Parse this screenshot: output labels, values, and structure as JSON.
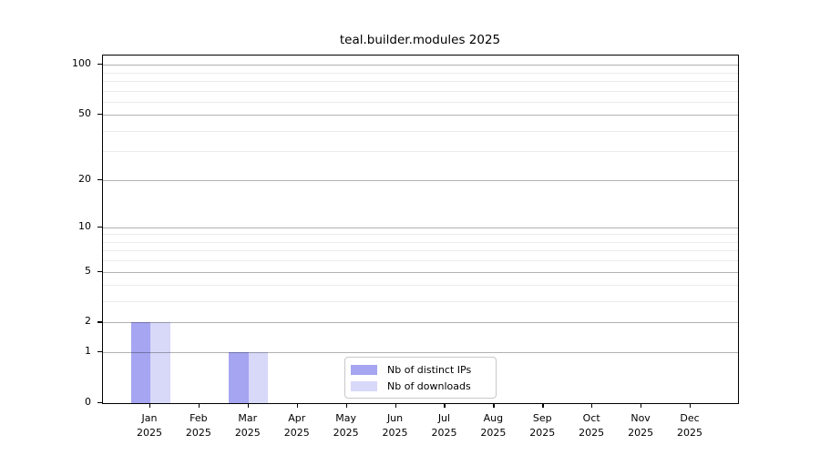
{
  "chart_data": {
    "type": "bar",
    "title": "teal.builder.modules 2025",
    "categories": [
      "Jan",
      "Feb",
      "Mar",
      "Apr",
      "May",
      "Jun",
      "Jul",
      "Aug",
      "Sep",
      "Oct",
      "Nov",
      "Dec"
    ],
    "x_year_label": "2025",
    "series": [
      {
        "name": "Nb of distinct IPs",
        "color": "#a5a5f2",
        "values": [
          2,
          0,
          1,
          0,
          0,
          0,
          0,
          0,
          0,
          0,
          0,
          0
        ]
      },
      {
        "name": "Nb of downloads",
        "color": "#d8d8f9",
        "values": [
          2,
          0,
          1,
          0,
          0,
          0,
          0,
          0,
          0,
          0,
          0,
          0
        ]
      }
    ],
    "yscale": "log1p",
    "ylim": [
      0,
      113.5
    ],
    "yticks": [
      0,
      1,
      2,
      5,
      10,
      20,
      50,
      100
    ],
    "yticks_minor": [
      3,
      4,
      6,
      7,
      8,
      9,
      30,
      40,
      60,
      70,
      80,
      90
    ],
    "grid": true,
    "grid_over_bars": true,
    "legend_position": "inside-bottom-center",
    "colors": {
      "grid_major": "rgba(0,0,0,0.30)",
      "grid_minor": "rgba(0,0,0,0.08)",
      "axis": "#000000",
      "background": "#ffffff"
    }
  }
}
